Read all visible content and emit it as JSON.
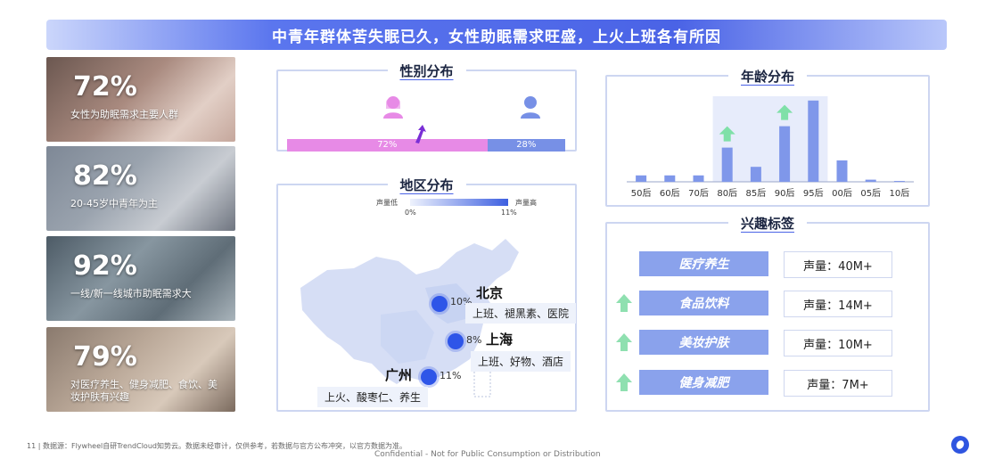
{
  "header": {
    "title": "中青年群体苦失眠已久，女性助眠需求旺盛，上火上班各有所因"
  },
  "stats": [
    {
      "pct": "72%",
      "desc": "女性为助眠需求主要人群"
    },
    {
      "pct": "82%",
      "desc": "20-45岁中青年为主"
    },
    {
      "pct": "92%",
      "desc": "一线/新一线城市助眠需求大"
    },
    {
      "pct": "79%",
      "desc": "对医疗养生、健身减肥、食饮、美妆护肤有兴趣"
    }
  ],
  "gender": {
    "title": "性别分布",
    "female_label": "72%",
    "male_label": "28%",
    "female_share": 0.72,
    "colors": {
      "female": "#e78ae6",
      "male": "#7790e6"
    }
  },
  "region": {
    "title": "地区分布",
    "legend_low": "声量低",
    "legend_high": "声量高",
    "legend_min": "0%",
    "legend_max": "11%",
    "cities": [
      {
        "name": "北京",
        "pct": "10%",
        "tags": "上班、褪黑素、医院"
      },
      {
        "name": "上海",
        "pct": "8%",
        "tags": "上班、好物、酒店"
      },
      {
        "name": "广州",
        "pct": "11%",
        "tags": "上火、酸枣仁、养生"
      }
    ]
  },
  "age": {
    "title": "年龄分布",
    "chart_data": {
      "type": "bar",
      "categories": [
        "50后",
        "60后",
        "70后",
        "80后",
        "85后",
        "90后",
        "95后",
        "00后",
        "05后",
        "10后"
      ],
      "values": [
        1.5,
        1.5,
        1.5,
        8,
        3.5,
        13,
        19,
        5,
        0.5,
        0.2
      ],
      "highlight_range": [
        "80后",
        "95后"
      ],
      "up_markers": [
        "80后",
        "90后"
      ],
      "ylim": [
        0,
        20
      ],
      "bar_color": "#7f97ea",
      "highlight_color": "#e7ecfb"
    }
  },
  "interests": {
    "title": "兴趣标签",
    "items": [
      {
        "label": "医疗养生",
        "volume": "声量：40M+",
        "rising": false
      },
      {
        "label": "食品饮料",
        "volume": "声量：14M+",
        "rising": true
      },
      {
        "label": "美妆护肤",
        "volume": "声量：10M+",
        "rising": true
      },
      {
        "label": "健身减肥",
        "volume": "声量：7M+",
        "rising": true
      }
    ]
  },
  "footer": {
    "page": "11",
    "source": "数据源：Flywheel自研TrendCloud知势云。数据未经审计，仅供参考，若数据与官方公布冲突，以官方数据为准。",
    "confidential": "Confidential - Not for Public Consumption or Distribution"
  }
}
